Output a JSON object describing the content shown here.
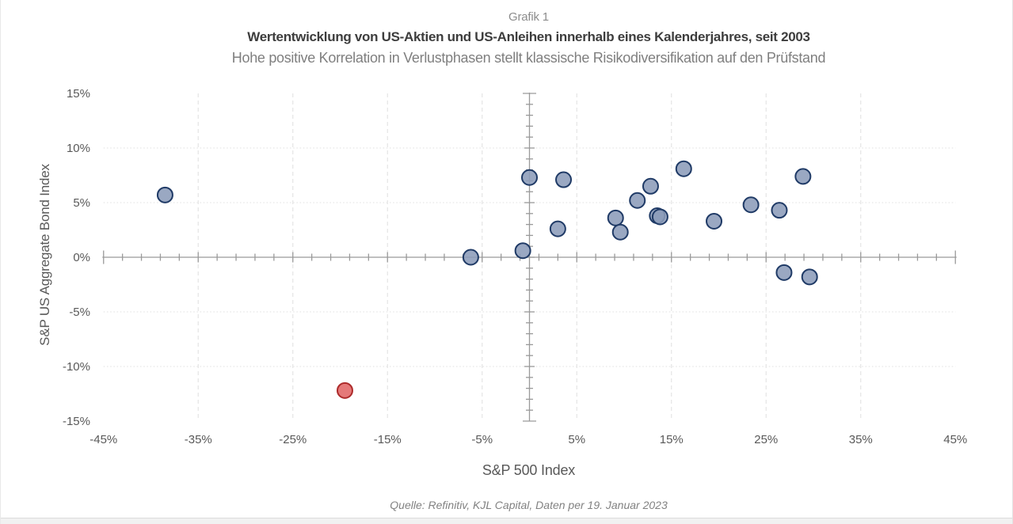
{
  "page": {
    "grafik_label": "Grafik 1",
    "title": "Wertentwicklung von US-Aktien und US-Anleihen innerhalb eines Kalenderjahres, seit 2003",
    "subtitle": "Hohe positive Korrelation in Verlustphasen stellt klassische Risikodiversifikation auf den Prüfstand",
    "source": "Quelle: Refinitiv, KJL Capital, Daten per 19. Januar 2023"
  },
  "chart_data": {
    "type": "scatter",
    "title": "Grafik 1",
    "subtitle": "Wertentwicklung von US-Aktien und US-Anleihen innerhalb eines Kalenderjahres, seit 2003",
    "caption": "Hohe positive Korrelation in Verlustphasen stellt klassische Risikodiversifikation auf den Prüfstand",
    "xlabel": "S&P 500 Index",
    "ylabel": "S&P US Aggregate Bond Index",
    "xlim": [
      -45,
      45
    ],
    "ylim": [
      -15,
      15
    ],
    "legend_position": "none",
    "x_ticks": [
      {
        "v": -45,
        "label": "-45%"
      },
      {
        "v": -35,
        "label": "-35%"
      },
      {
        "v": -25,
        "label": "-25%"
      },
      {
        "v": -15,
        "label": "-15%"
      },
      {
        "v": -5,
        "label": "-5%"
      },
      {
        "v": 5,
        "label": "5%"
      },
      {
        "v": 15,
        "label": "15%"
      },
      {
        "v": 25,
        "label": "25%"
      },
      {
        "v": 35,
        "label": "35%"
      }
    ],
    "x_ticks_last": {
      "v": 45,
      "label": "45%"
    },
    "y_ticks": [
      {
        "v": 15,
        "label": "15%"
      },
      {
        "v": 10,
        "label": "10%"
      },
      {
        "v": 5,
        "label": "5%"
      },
      {
        "v": 0,
        "label": "0%"
      },
      {
        "v": -5,
        "label": "-5%"
      },
      {
        "v": -10,
        "label": "-10%"
      },
      {
        "v": -15,
        "label": "-15%"
      }
    ],
    "x_gridlines": [
      -35,
      -25,
      -15,
      -5,
      5,
      15,
      25,
      35
    ],
    "y_gridlines": [
      10,
      5,
      -5,
      -10
    ],
    "x_minor_tick_step": 2,
    "y_minor_tick_step": 1,
    "series": [
      {
        "name": "kalenderjahre",
        "marker_fill": "#8C9CBA",
        "marker_stroke": "#1F3A66",
        "marker_opacity": 0.88,
        "points": [
          [
            -38.5,
            5.7
          ],
          [
            -6.2,
            0.0
          ],
          [
            -0.7,
            0.6
          ],
          [
            0.0,
            7.3
          ],
          [
            3.0,
            2.6
          ],
          [
            3.6,
            7.1
          ],
          [
            9.1,
            3.6
          ],
          [
            9.6,
            2.3
          ],
          [
            11.4,
            5.2
          ],
          [
            12.8,
            6.5
          ],
          [
            13.5,
            3.8
          ],
          [
            13.8,
            3.7
          ],
          [
            16.3,
            8.1
          ],
          [
            19.5,
            3.3
          ],
          [
            23.4,
            4.8
          ],
          [
            26.4,
            4.3
          ],
          [
            26.9,
            -1.4
          ],
          [
            28.9,
            7.4
          ],
          [
            29.6,
            -1.8
          ]
        ]
      },
      {
        "name": "hervorgehobenes-jahr",
        "marker_fill": "#E26A6A",
        "marker_stroke": "#AD2B2B",
        "marker_opacity": 0.9,
        "points": [
          [
            -19.5,
            -12.2
          ]
        ]
      }
    ]
  }
}
